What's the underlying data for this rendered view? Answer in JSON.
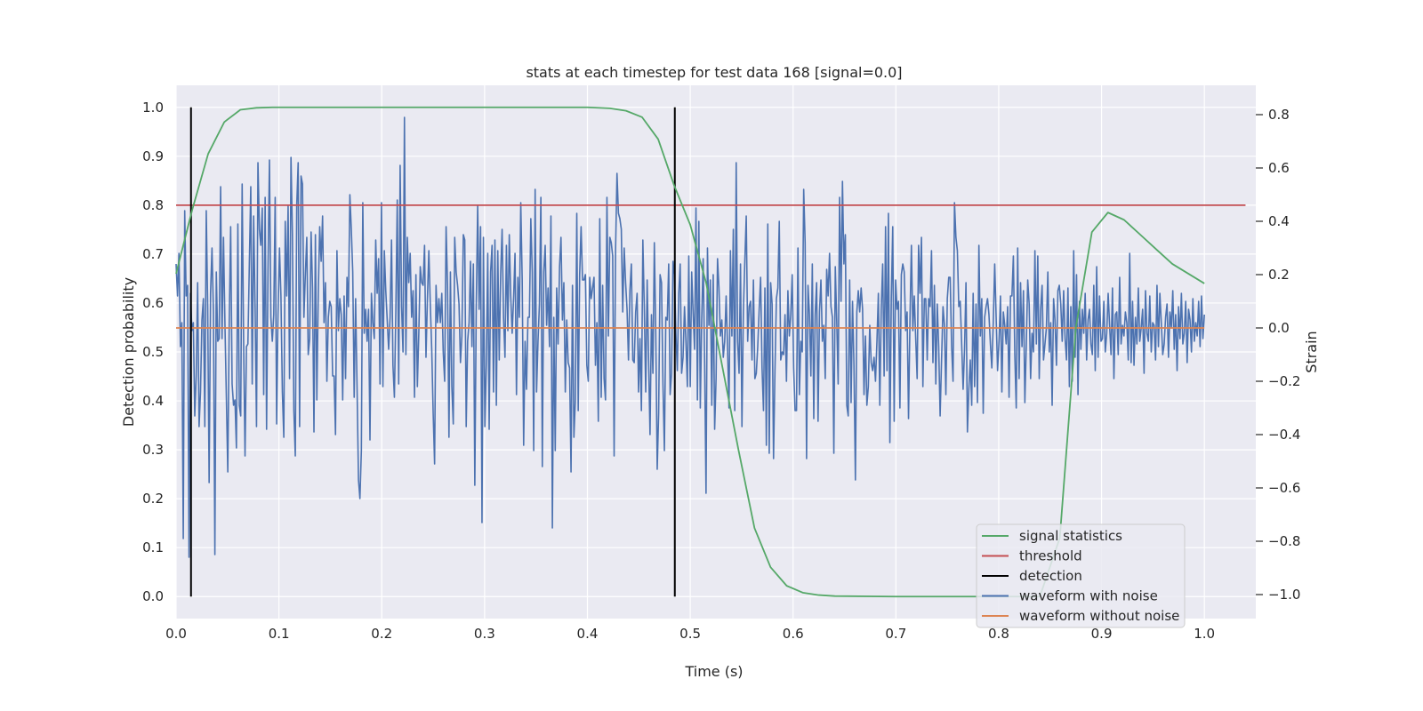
{
  "chart_data": {
    "type": "line",
    "title": "stats at each timestep for test data 168 [signal=0.0]",
    "xlabel": "Time (s)",
    "ylabel_left": "Detection probability",
    "ylabel_right": "Strain",
    "xlim": [
      0.0,
      1.05
    ],
    "ylim_left": [
      -0.045,
      1.045
    ],
    "ylim_right": [
      -1.09,
      0.91
    ],
    "xticks": [
      0.0,
      0.1,
      0.2,
      0.3,
      0.4,
      0.5,
      0.6,
      0.7,
      0.8,
      0.9,
      1.0
    ],
    "xtick_labels": [
      "0.0",
      "0.1",
      "0.2",
      "0.3",
      "0.4",
      "0.5",
      "0.6",
      "0.7",
      "0.8",
      "0.9",
      "1.0"
    ],
    "yticks_left": [
      0.0,
      0.1,
      0.2,
      0.3,
      0.4,
      0.5,
      0.6,
      0.7,
      0.8,
      0.9,
      1.0
    ],
    "ytick_labels_left": [
      "0.0",
      "0.1",
      "0.2",
      "0.3",
      "0.4",
      "0.5",
      "0.6",
      "0.7",
      "0.8",
      "0.9",
      "1.0"
    ],
    "yticks_right": [
      0.8,
      0.6,
      0.4,
      0.2,
      0.0,
      -0.2,
      -0.4,
      -0.6,
      -0.8,
      -1.0
    ],
    "ytick_labels_right": [
      "0.8",
      "0.6",
      "0.4",
      "0.2",
      "0.0",
      "−0.2",
      "−0.4",
      "−0.6",
      "−0.8",
      "−1.0"
    ],
    "grid": true,
    "background_color": "#eaeaf2",
    "legend_position": "lower-right",
    "series": [
      {
        "name": "signal statistics",
        "axis": "left",
        "color": "#55a868",
        "x": [
          0.0,
          0.0156,
          0.0312,
          0.0469,
          0.0625,
          0.0781,
          0.0938,
          0.1094,
          0.125,
          0.2,
          0.3,
          0.4,
          0.4219,
          0.4375,
          0.4531,
          0.4688,
          0.4844,
          0.5,
          0.5156,
          0.5312,
          0.5469,
          0.5625,
          0.5781,
          0.5938,
          0.6094,
          0.625,
          0.6406,
          0.7,
          0.8,
          0.82,
          0.84,
          0.8594,
          0.875,
          0.8906,
          0.9062,
          0.9219,
          0.9375,
          0.9531,
          0.9688,
          0.9844,
          1.0
        ],
        "y": [
          0.66,
          0.79,
          0.905,
          0.97,
          0.995,
          0.999,
          1.0,
          1.0,
          1.0,
          1.0,
          1.0,
          1.0,
          0.998,
          0.993,
          0.98,
          0.935,
          0.84,
          0.76,
          0.64,
          0.47,
          0.3,
          0.14,
          0.06,
          0.022,
          0.008,
          0.003,
          0.001,
          0.0,
          0.0,
          0.0,
          0.0,
          0.12,
          0.55,
          0.745,
          0.785,
          0.77,
          0.74,
          0.71,
          0.68,
          0.66,
          0.64
        ]
      },
      {
        "name": "threshold",
        "axis": "left",
        "color": "#c44e52",
        "x": [
          0.0,
          1.04
        ],
        "y": [
          0.8,
          0.8
        ]
      },
      {
        "name": "detection",
        "axis": "left",
        "color": "#000000",
        "segments": [
          {
            "x": 0.0145,
            "y": [
              0.0,
              1.0
            ]
          },
          {
            "x": 0.485,
            "y": [
              0.0,
              1.0
            ]
          }
        ]
      },
      {
        "name": "waveform with noise",
        "axis": "right",
        "color": "#4c72b0",
        "x_start": 0.0,
        "x_end": 1.0,
        "y": [
          0.24,
          0.12,
          0.28,
          -0.07,
          0.02,
          -0.79,
          0.44,
          0.12,
          0.16,
          -0.86,
          0.13,
          -0.01,
          0.02,
          -0.33,
          -0.18,
          0.17,
          -0.37,
          -0.24,
          0.03,
          0.11,
          -0.37,
          0.44,
          0.08,
          -0.58,
          0.13,
          0.3,
          0.06,
          -0.85,
          0.21,
          -0.05,
          -0.04,
          0.53,
          -0.04,
          0.34,
          0.02,
          -0.26,
          -0.54,
          0.02,
          0.38,
          -0.21,
          -0.29,
          -0.27,
          -0.45,
          0.39,
          -0.29,
          -0.33,
          0.54,
          -0.05,
          -0.48,
          -0.07,
          -0.06,
          0.24,
          0.53,
          -0.21,
          0.42,
          0.08,
          -0.37,
          0.62,
          0.37,
          0.31,
          0.45,
          -0.25,
          0.49,
          -0.38,
          0.22,
          0.63,
          0.04,
          -0.05,
          0.05,
          0.49,
          -0.36,
          0.05,
          0.3,
          0.12,
          -0.24,
          -0.41,
          0.4,
          0.12,
          0.46,
          -0.19,
          0.64,
          0.35,
          -0.31,
          -0.48,
          0.46,
          0.62,
          -0.37,
          0.57,
          0.54,
          0.04,
          0.2,
          0.34,
          -0.1,
          -0.04,
          0.36,
          0.15,
          -0.39,
          0.35,
          -0.27,
          0.13,
          0.38,
          0.25,
          0.42,
          0.02,
          0.17,
          -0.2,
          0.04,
          0.1,
          0.08,
          -0.18,
          -0.18,
          -0.4,
          0.29,
          -0.01,
          0.11,
          0.05,
          -0.27,
          0.12,
          -0.19,
          0.19,
          0.08,
          0.5,
          0.37,
          0.21,
          -0.26,
          0.11,
          -0.22,
          -0.57,
          -0.64,
          -0.46,
          0.47,
          -0.02,
          0.07,
          -0.05,
          0.07,
          -0.42,
          0.13,
          0.02,
          -0.04,
          0.33,
          0.13,
          0.26,
          -0.21,
          0.47,
          -0.22,
          0.29,
          0.14,
          0.03,
          -0.08,
          0.04,
          0.33,
          -0.14,
          -0.26,
          0.06,
          0.48,
          -0.21,
          0.61,
          0.08,
          -0.09,
          0.79,
          -0.1,
          0.34,
          0.17,
          0.28,
          0.04,
          0.14,
          -0.26,
          0.2,
          -0.22,
          -0.02,
          0.23,
          0.17,
          0.16,
          0.31,
          -0.11,
          0.11,
          0.29,
          0.09,
          -0.08,
          -0.32,
          -0.51,
          0.16,
          0.02,
          0.11,
          0.02,
          0.13,
          -0.09,
          -0.2,
          0.38,
          0.16,
          -0.41,
          0.21,
          -0.22,
          -0.36,
          0.34,
          0.21,
          0.16,
          0.09,
          -0.13,
          -0.03,
          0.35,
          0.33,
          -0.37,
          -0.05,
          0.02,
          0.25,
          -0.07,
          0.24,
          -0.59,
          0.08,
          0.46,
          0.07,
          0.38,
          -0.73,
          0.34,
          -0.37,
          -0.14,
          0.28,
          -0.38,
          0.21,
          0.31,
          -0.24,
          0.33,
          -0.29,
          0.29,
          -0.12,
          0.2,
          0.37,
          0.04,
          -0.11,
          0.31,
          -0.01,
          0.35,
          0.12,
          -0.02,
          0.11,
          0.28,
          -0.25,
          0.19,
          0.04,
          0.47,
          0.18,
          -0.44,
          -0.05,
          -0.23,
          0.04,
          0.04,
          0.41,
          0.21,
          -0.46,
          0.52,
          -0.24,
          -0.05,
          0.09,
          0.49,
          -0.52,
          0.21,
          0.31,
          0.01,
          0.15,
          -0.07,
          0.42,
          -0.75,
          0.04,
          -0.46,
          0.15,
          -0.06,
          0.23,
          0.34,
          0.03,
          0.17,
          -0.24,
          0.03,
          -0.13,
          -0.15,
          -0.54,
          0.16,
          -0.41,
          -0.27,
          0.43,
          -0.31,
          0.2,
          0.38,
          0.18,
          0.18,
          0.2,
          -0.14,
          -0.2,
          0.19,
          0.11,
          0.15,
          0.19,
          -0.14,
          0.02,
          -0.35,
          0.41,
          -0.26,
          0.16,
          -0.19,
          -0.27,
          0.49,
          -0.03,
          0.34,
          0.32,
          0.27,
          -0.48,
          0.29,
          0.58,
          0.43,
          0.41,
          0.37,
          0.06,
          0.3,
          0.17,
          0.07,
          -0.12,
          0.14,
          0.24,
          -0.12,
          -0.13,
          0.06,
          0.13,
          -0.24,
          -0.04,
          -0.31,
          0.33,
          0.08,
          -0.24,
          0.18,
          -0.12,
          -0.4,
          0.05,
          -0.17,
          0.32,
          -0.02,
          -0.53,
          -0.32,
          0.2,
          0.17,
          -0.21,
          -0.46,
          0.04,
          0.03,
          0.24,
          -0.25,
          -0.17,
          0.25,
          0.2,
          -0.02,
          -0.16,
          0.13,
          0.24,
          -0.17,
          -0.11,
          0.08,
          -0.05,
          -0.22,
          0.27,
          -0.22,
          0.21,
          0.06,
          -0.08,
          0.45,
          -0.27,
          0.4,
          -0.3,
          0.03,
          0.26,
          -0.12,
          -0.62,
          0.3,
          0.01,
          0.18,
          -0.29,
          0.2,
          -0.38,
          -0.19,
          0.26,
          0.15,
          -0.03,
          0.03,
          -0.11,
          -0.05,
          0.12,
          -0.08,
          -0.3,
          0.29,
          -0.03,
          0.37,
          -0.31,
          0.62,
          -0.05,
          -0.17,
          0.24,
          -0.37,
          0.06,
          0.25,
          0.42,
          -0.05,
          0.08,
          0.1,
          -0.12,
          0.18,
          -0.19,
          -0.17,
          -0.07,
          0.07,
          0.19,
          -0.15,
          -0.31,
          0.15,
          -0.44,
          0.39,
          -0.47,
          0.17,
          0.09,
          -0.49,
          -0.16,
          0.11,
          0.15,
          0.4,
          -0.12,
          -0.09,
          -0.1,
          0.05,
          -0.2,
          0.14,
          -0.03,
          0.05,
          0.2,
          -0.15,
          -0.31,
          -0.31,
          0.3,
          -0.25,
          -0.05,
          -0.09,
          0.52,
          0.32,
          -0.49,
          0.16,
          0.05,
          -0.18,
          0.24,
          -0.34,
          0.05,
          0.17,
          -0.35,
          0.06,
          0.18,
          -0.05,
          0.01,
          -0.19,
          0.22,
          0.12,
          0.28,
          0.08,
          0.04,
          -0.47,
          0.23,
          0.03,
          -0.21,
          0.49,
          0.1,
          0.55,
          0.24,
          0.35,
          -0.29,
          -0.33,
          0.18,
          -0.28,
          0.1,
          -0.14,
          -0.57,
          0.06,
          0.14,
          0.06,
          0.15,
          0.07,
          -0.25,
          -0.03,
          -0.29,
          -0.22,
          0.01,
          -0.13,
          -0.16,
          -0.11,
          -0.2,
          -0.05,
          0.13,
          -0.29,
          0.07,
          0.24,
          -0.18,
          0.38,
          -0.16,
          0.43,
          -0.43,
          0.11,
          0.38,
          -0.35,
          0.18,
          0.07,
          0.1,
          -0.3,
          0.2,
          0.24,
          0.21,
          -0.01,
          0.06,
          -0.34,
          0.03,
          0.31,
          -0.01,
          0.12,
          -0.04,
          -0.19,
          0.31,
          0.13,
          0.34,
          -0.22,
          0.11,
          0.11,
          -0.12,
          0.11,
          0.08,
          0.29,
          -0.13,
          0.16,
          -0.21,
          0.09,
          -0.07,
          -0.33,
          -0.12,
          0.08,
          0.01,
          -0.25,
          0.11,
          0.19,
          0.19,
          -0.07,
          -0.2,
          0.47,
          0.34,
          0.29,
          0.08,
          0.1,
          -0.06,
          -0.23,
          -0.08,
          0.17,
          -0.39,
          -0.23,
          -0.12,
          -0.29,
          0.13,
          -0.22,
          0.09,
          -0.28,
          0.31,
          -0.03,
          0.11,
          -0.32,
          0.04,
          0.08,
          0.11,
          0.05,
          -0.06,
          -0.15,
          0.02,
          0.24,
          0.04,
          -0.16,
          -0.05,
          0.12,
          -0.24,
          0.06,
          0.01,
          -0.06,
          0.08,
          -0.26,
          0.12,
          0.12,
          0.27,
          -0.1,
          -0.3,
          0.3,
          -0.19,
          0.17,
          -0.07,
          0.14,
          -0.28,
          -0.06,
          0.18,
          0.09,
          -0.19,
          -0.02,
          -0.09,
          0.29,
          -0.06,
          0.27,
          -0.19,
          0.07,
          0.16,
          -0.12,
          -0.06,
          0.0,
          0.21,
          -0.09,
          0.02,
          -0.29,
          0.11,
          0.03,
          -0.14,
          0.14,
          0.16,
          0.09,
          -0.05,
          0.14,
          -0.04,
          -0.12,
          0.15,
          -0.22,
          0.08,
          -0.2,
          0.29,
          -0.11,
          0.2,
          -0.25,
          0.1,
          -0.08,
          0.07,
          -0.02,
          0.13,
          -0.12,
          0.03,
          0.07,
          -0.06,
          -0.1,
          0.16,
          -0.16,
          0.23,
          -0.11,
          0.12,
          -0.05,
          -0.04,
          0.1,
          -0.09,
          -0.02,
          0.13,
          0.01,
          -0.1,
          0.15,
          -0.19,
          0.05,
          0.06,
          -0.1,
          0.19,
          -0.06,
          0.01,
          -0.03,
          0.06,
          0.02,
          -0.12,
          0.28,
          -0.13,
          0.1,
          -0.14,
          0.04,
          -0.06,
          0.15,
          -0.05,
          0.0,
          0.07,
          -0.17,
          0.14,
          -0.02,
          -0.05,
          0.12,
          -0.09,
          0.02,
          0.01,
          -0.12,
          0.16,
          -0.07,
          0.13,
          0.02,
          -0.1,
          -0.06,
          0.04,
          0.09,
          -0.11,
          0.06,
          0.0,
          0.14,
          -0.08,
          0.05,
          -0.16,
          0.08,
          -0.04,
          0.13,
          -0.06,
          -0.02,
          0.1,
          -0.13,
          0.07,
          0.03,
          -0.09,
          0.11,
          -0.05,
          0.02,
          -0.03,
          0.1,
          -0.07,
          0.12,
          -0.04,
          0.05
        ]
      },
      {
        "name": "waveform without noise",
        "axis": "right",
        "color": "#dd8452",
        "x": [
          0.0,
          1.0
        ],
        "y": [
          0.0,
          0.0
        ]
      }
    ]
  }
}
